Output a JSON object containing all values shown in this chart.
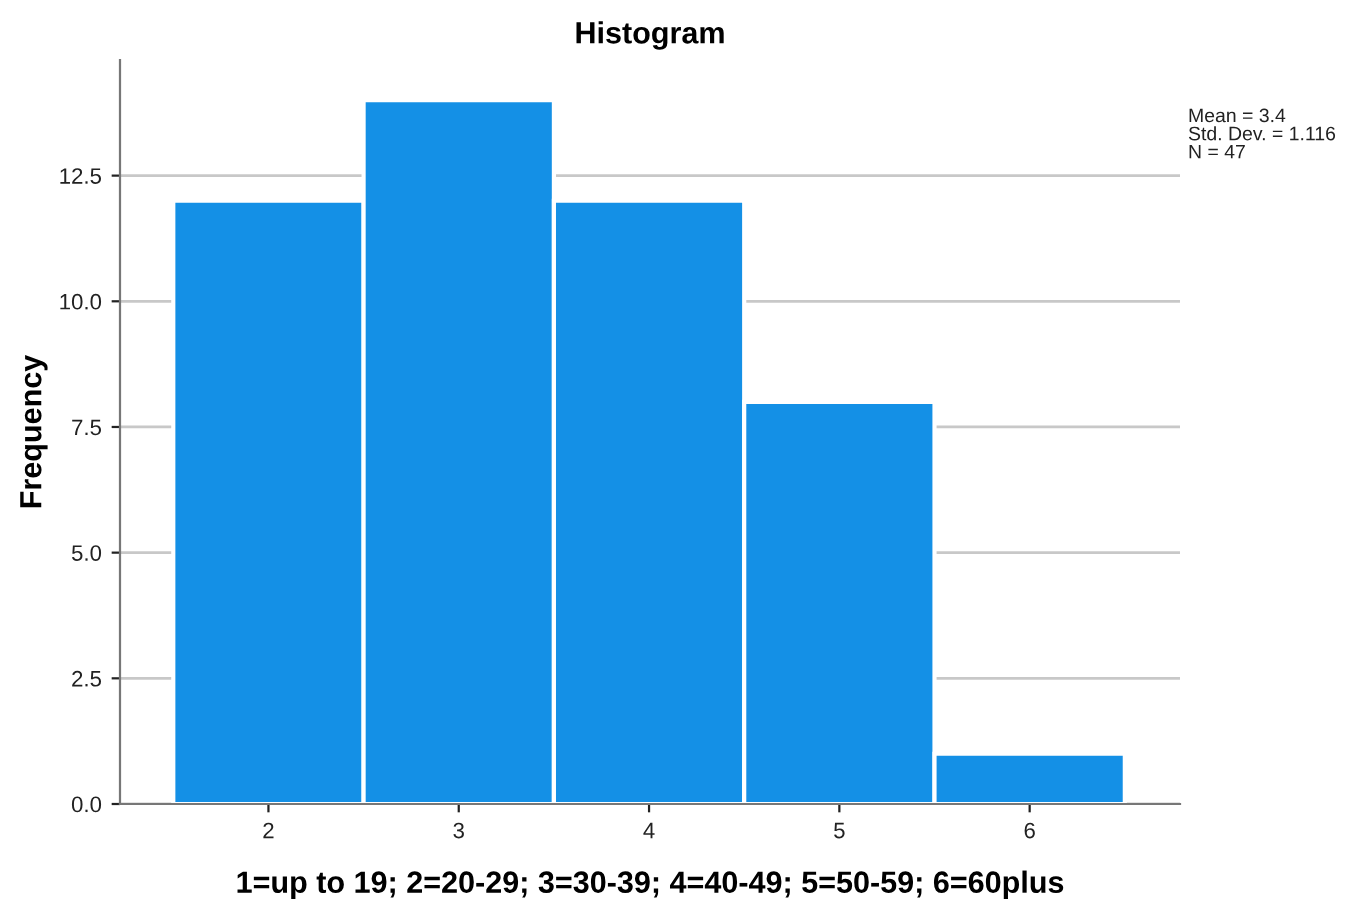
{
  "chart_data": {
    "type": "histogram",
    "title": "Histogram",
    "xlabel": "1=up to 19; 2=20-29; 3=30-39; 4=40-49; 5=50-59; 6=60plus",
    "ylabel": "Frequency",
    "bins": [
      1.5,
      2.5,
      3.5,
      4.5,
      5.5,
      6.5
    ],
    "values": [
      12,
      14,
      12,
      8,
      1
    ],
    "color": "#1490e6",
    "xlim": [
      1.22,
      6.79
    ],
    "ylim": [
      0,
      14.8
    ],
    "xticks": [
      2,
      3,
      4,
      5,
      6
    ],
    "yticks": [
      {
        "value": 0,
        "label": "0.0"
      },
      {
        "value": 2.5,
        "label": "2.5"
      },
      {
        "value": 5,
        "label": "5.0"
      },
      {
        "value": 7.5,
        "label": "7.5"
      },
      {
        "value": 10,
        "label": "10.0"
      },
      {
        "value": 12.5,
        "label": "12.5"
      }
    ],
    "grid": "y",
    "annotations": [
      "Mean = 3.4",
      "Std. Dev. = 1.116",
      "N = 47"
    ]
  }
}
